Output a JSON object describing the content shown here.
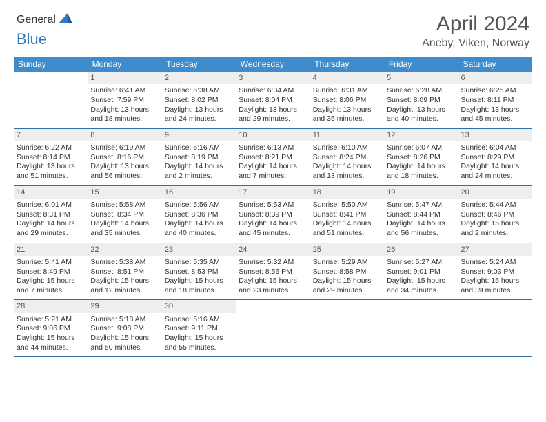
{
  "logo": {
    "text_general": "General",
    "text_blue": "Blue",
    "icon_color": "#2f7bbf"
  },
  "header": {
    "title": "April 2024",
    "location": "Aneby, Viken, Norway"
  },
  "colors": {
    "header_bg": "#3e8ccc",
    "header_text": "#ffffff",
    "daynum_bg": "#eeeeee",
    "row_border": "#2f6fa3"
  },
  "weekdays": [
    "Sunday",
    "Monday",
    "Tuesday",
    "Wednesday",
    "Thursday",
    "Friday",
    "Saturday"
  ],
  "weeks": [
    [
      null,
      {
        "n": "1",
        "sr": "Sunrise: 6:41 AM",
        "ss": "Sunset: 7:59 PM",
        "dl": "Daylight: 13 hours and 18 minutes."
      },
      {
        "n": "2",
        "sr": "Sunrise: 6:38 AM",
        "ss": "Sunset: 8:02 PM",
        "dl": "Daylight: 13 hours and 24 minutes."
      },
      {
        "n": "3",
        "sr": "Sunrise: 6:34 AM",
        "ss": "Sunset: 8:04 PM",
        "dl": "Daylight: 13 hours and 29 minutes."
      },
      {
        "n": "4",
        "sr": "Sunrise: 6:31 AM",
        "ss": "Sunset: 8:06 PM",
        "dl": "Daylight: 13 hours and 35 minutes."
      },
      {
        "n": "5",
        "sr": "Sunrise: 6:28 AM",
        "ss": "Sunset: 8:09 PM",
        "dl": "Daylight: 13 hours and 40 minutes."
      },
      {
        "n": "6",
        "sr": "Sunrise: 6:25 AM",
        "ss": "Sunset: 8:11 PM",
        "dl": "Daylight: 13 hours and 45 minutes."
      }
    ],
    [
      {
        "n": "7",
        "sr": "Sunrise: 6:22 AM",
        "ss": "Sunset: 8:14 PM",
        "dl": "Daylight: 13 hours and 51 minutes."
      },
      {
        "n": "8",
        "sr": "Sunrise: 6:19 AM",
        "ss": "Sunset: 8:16 PM",
        "dl": "Daylight: 13 hours and 56 minutes."
      },
      {
        "n": "9",
        "sr": "Sunrise: 6:16 AM",
        "ss": "Sunset: 8:19 PM",
        "dl": "Daylight: 14 hours and 2 minutes."
      },
      {
        "n": "10",
        "sr": "Sunrise: 6:13 AM",
        "ss": "Sunset: 8:21 PM",
        "dl": "Daylight: 14 hours and 7 minutes."
      },
      {
        "n": "11",
        "sr": "Sunrise: 6:10 AM",
        "ss": "Sunset: 8:24 PM",
        "dl": "Daylight: 14 hours and 13 minutes."
      },
      {
        "n": "12",
        "sr": "Sunrise: 6:07 AM",
        "ss": "Sunset: 8:26 PM",
        "dl": "Daylight: 14 hours and 18 minutes."
      },
      {
        "n": "13",
        "sr": "Sunrise: 6:04 AM",
        "ss": "Sunset: 8:29 PM",
        "dl": "Daylight: 14 hours and 24 minutes."
      }
    ],
    [
      {
        "n": "14",
        "sr": "Sunrise: 6:01 AM",
        "ss": "Sunset: 8:31 PM",
        "dl": "Daylight: 14 hours and 29 minutes."
      },
      {
        "n": "15",
        "sr": "Sunrise: 5:58 AM",
        "ss": "Sunset: 8:34 PM",
        "dl": "Daylight: 14 hours and 35 minutes."
      },
      {
        "n": "16",
        "sr": "Sunrise: 5:56 AM",
        "ss": "Sunset: 8:36 PM",
        "dl": "Daylight: 14 hours and 40 minutes."
      },
      {
        "n": "17",
        "sr": "Sunrise: 5:53 AM",
        "ss": "Sunset: 8:39 PM",
        "dl": "Daylight: 14 hours and 45 minutes."
      },
      {
        "n": "18",
        "sr": "Sunrise: 5:50 AM",
        "ss": "Sunset: 8:41 PM",
        "dl": "Daylight: 14 hours and 51 minutes."
      },
      {
        "n": "19",
        "sr": "Sunrise: 5:47 AM",
        "ss": "Sunset: 8:44 PM",
        "dl": "Daylight: 14 hours and 56 minutes."
      },
      {
        "n": "20",
        "sr": "Sunrise: 5:44 AM",
        "ss": "Sunset: 8:46 PM",
        "dl": "Daylight: 15 hours and 2 minutes."
      }
    ],
    [
      {
        "n": "21",
        "sr": "Sunrise: 5:41 AM",
        "ss": "Sunset: 8:49 PM",
        "dl": "Daylight: 15 hours and 7 minutes."
      },
      {
        "n": "22",
        "sr": "Sunrise: 5:38 AM",
        "ss": "Sunset: 8:51 PM",
        "dl": "Daylight: 15 hours and 12 minutes."
      },
      {
        "n": "23",
        "sr": "Sunrise: 5:35 AM",
        "ss": "Sunset: 8:53 PM",
        "dl": "Daylight: 15 hours and 18 minutes."
      },
      {
        "n": "24",
        "sr": "Sunrise: 5:32 AM",
        "ss": "Sunset: 8:56 PM",
        "dl": "Daylight: 15 hours and 23 minutes."
      },
      {
        "n": "25",
        "sr": "Sunrise: 5:29 AM",
        "ss": "Sunset: 8:58 PM",
        "dl": "Daylight: 15 hours and 29 minutes."
      },
      {
        "n": "26",
        "sr": "Sunrise: 5:27 AM",
        "ss": "Sunset: 9:01 PM",
        "dl": "Daylight: 15 hours and 34 minutes."
      },
      {
        "n": "27",
        "sr": "Sunrise: 5:24 AM",
        "ss": "Sunset: 9:03 PM",
        "dl": "Daylight: 15 hours and 39 minutes."
      }
    ],
    [
      {
        "n": "28",
        "sr": "Sunrise: 5:21 AM",
        "ss": "Sunset: 9:06 PM",
        "dl": "Daylight: 15 hours and 44 minutes."
      },
      {
        "n": "29",
        "sr": "Sunrise: 5:18 AM",
        "ss": "Sunset: 9:08 PM",
        "dl": "Daylight: 15 hours and 50 minutes."
      },
      {
        "n": "30",
        "sr": "Sunrise: 5:16 AM",
        "ss": "Sunset: 9:11 PM",
        "dl": "Daylight: 15 hours and 55 minutes."
      },
      null,
      null,
      null,
      null
    ]
  ]
}
